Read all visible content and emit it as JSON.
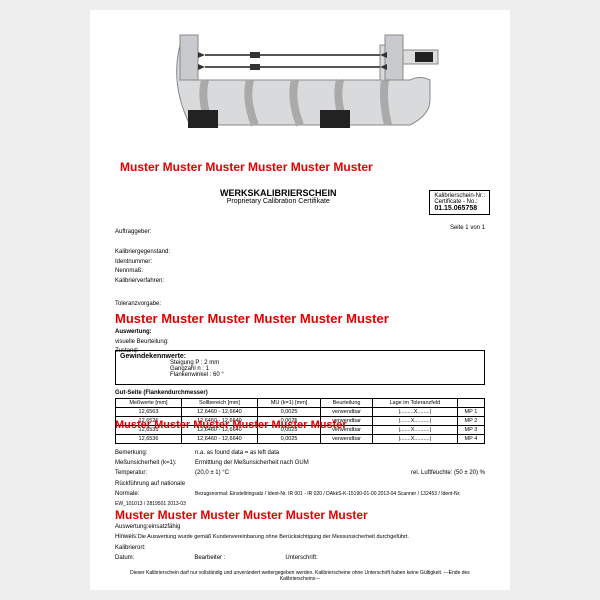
{
  "muster_text": "Muster Muster Muster Muster Muster Muster",
  "muster_text2": "Muster Muster  Muster Muster Muster Muster",
  "title_de": "WERKSKALIBRIERSCHEIN",
  "title_en": "Proprietary Calibration Certifikate",
  "certno_label": "Kalibrierschein-Nr.:",
  "certno_label2": "Certificate - No.:",
  "certno": "01.15.065758",
  "page": "Seite 1 von 1",
  "labels1": {
    "auftraggeber": "Auftraggeber:",
    "kaliber": "Kalibriergegenstand:",
    "ident": "Identnummer:",
    "nenn": "Nennmaß:",
    "verfahren": "Kalibrierverfahren:",
    "toleranz": "Toleranzvorgabe:"
  },
  "ausw": {
    "h": "Auswertung:",
    "vis": "visuelle Beurteilung:",
    "zust": "Zustand:"
  },
  "gewinde": {
    "h": "Gewindekennwerte:",
    "r1": "Steigung P :  2 mm",
    "r2": "Gangzahl n :  1",
    "r3": "Flankenwinkel :  60 °"
  },
  "gut": "Gut-Seite (Flankendurchmesser)",
  "thead": [
    "Meßwerte [mm]",
    "Sollbereich [mm]",
    "MU (k=1) [mm]",
    "Beurteilung",
    "Lage im Toleranzfeld",
    ""
  ],
  "rows": [
    [
      "12,6563",
      "12,6460 - 12,6640",
      "0,0025",
      "verwendbar",
      "|.........X........|",
      "MP 1"
    ],
    [
      "12,6526",
      "12,6460 - 12,6640",
      "0,0025",
      "verwendbar",
      "|.......X..........|",
      "MP 2"
    ],
    [
      "12,6535",
      "12,6460 - 12,6640",
      "0,0025",
      "verwendbar",
      "|.......X..........|",
      "MP 3"
    ],
    [
      "12,6536",
      "12,6460 - 12,6640",
      "0,0025",
      "verwendbar",
      "|.......X..........|",
      "MP 4"
    ]
  ],
  "sec4": {
    "bem_l": "Bemerkung:",
    "bem_v": "n.a.\nas found data = as left data",
    "mu_l": "Meßunsicherheit (k=1):",
    "mu_v": "Ermittlung der Meßunsicherheit nach GUM",
    "temp_l": "Temperatur:",
    "temp_v": "(20,0 ± 1) °C",
    "luft_l": "rel. Luftfeuchte:",
    "luft_v": "(50 ± 20) %",
    "ruck_l": "Rückführung auf\nnationale Normale:",
    "ruck_v": "Bezugsnormal: Einstellringsatz / Ident-Nr. IR 001 - IR 020 / DAkkS-K-15190-01-00 2013-04\nScanner / 132453 / Ident-Nr. EW_101013 / 2819501 2013-03"
  },
  "sec5": {
    "aus_l": "Auswertung:",
    "aus_v": "einsatzfähig",
    "hin_l": "Hinweis:",
    "hin_v": "Die Auswertung wurde gemäß Kundenvereinbarung ohne Berücksichtigung der Messunsicherheit durchgeführt.",
    "kal_l": "Kalibrierort:",
    "dat_l": "Datum:",
    "bea_l": "Bearbeiter :",
    "unt_l": "Unterschrift:"
  },
  "fine": "Dieser Kalibrierschein darf nur vollständig und unverändert weitergegeben werden. Kalibrierscheine ohne Unterschrift haben keine Gültigkeit.\n---Ende des Kalibrierscheins---"
}
